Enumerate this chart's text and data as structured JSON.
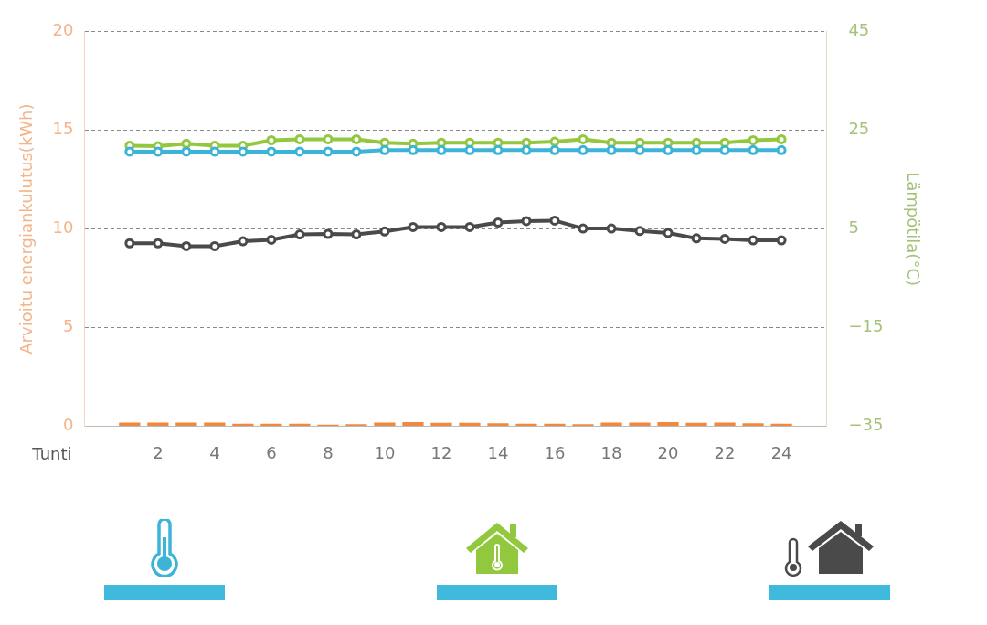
{
  "chart_data": {
    "type": "line",
    "xlabel": "Tunti",
    "ylabel": "Arvioitu energiankulutus(kWh)",
    "y2label": "Lämpötila(°C)",
    "x": [
      1,
      2,
      3,
      4,
      5,
      6,
      7,
      8,
      9,
      10,
      11,
      12,
      13,
      14,
      15,
      16,
      17,
      18,
      19,
      20,
      21,
      22,
      23,
      24
    ],
    "xlim": [
      0.5,
      24.5
    ],
    "xticks": [
      2,
      4,
      6,
      8,
      10,
      12,
      14,
      16,
      18,
      20,
      22,
      24
    ],
    "series": [
      {
        "axis": "y2",
        "color": "#3bb4d8",
        "values": [
          20.7,
          20.7,
          20.7,
          20.7,
          20.7,
          20.7,
          20.7,
          20.7,
          20.7,
          21.0,
          21.0,
          21.0,
          21.0,
          21.0,
          21.0,
          21.0,
          21.0,
          21.0,
          21.0,
          21.0,
          21.0,
          21.0,
          21.0,
          21.0
        ]
      },
      {
        "axis": "y2",
        "color": "#92c83e",
        "values": [
          21.9,
          21.8,
          22.3,
          21.9,
          21.9,
          23.0,
          23.2,
          23.2,
          23.2,
          22.5,
          22.3,
          22.5,
          22.5,
          22.5,
          22.5,
          22.7,
          23.2,
          22.5,
          22.5,
          22.5,
          22.5,
          22.5,
          23.0,
          23.2
        ]
      },
      {
        "axis": "y2",
        "color": "#4a4a4a",
        "values": [
          2.1,
          2.1,
          1.5,
          1.5,
          2.5,
          2.8,
          3.9,
          4.0,
          3.9,
          4.5,
          5.4,
          5.4,
          5.4,
          6.3,
          6.6,
          6.7,
          5.1,
          5.1,
          4.6,
          4.2,
          3.1,
          3.0,
          2.7,
          2.7
        ]
      },
      {
        "type": "bar",
        "axis": "y",
        "color": "#f0883e",
        "values": [
          0.18,
          0.18,
          0.18,
          0.18,
          0.12,
          0.12,
          0.12,
          0.08,
          0.1,
          0.18,
          0.2,
          0.17,
          0.17,
          0.15,
          0.12,
          0.12,
          0.1,
          0.18,
          0.18,
          0.2,
          0.17,
          0.18,
          0.15,
          0.12
        ]
      }
    ],
    "ylim": [
      0,
      20
    ],
    "yticks": [
      0,
      5,
      10,
      15,
      20
    ],
    "y2lim": [
      -35,
      45
    ],
    "y2ticks": [
      -35,
      -15,
      5,
      25,
      45
    ],
    "grid": "y",
    "marker": "circle",
    "line_style": "solid",
    "legend": false
  }
}
